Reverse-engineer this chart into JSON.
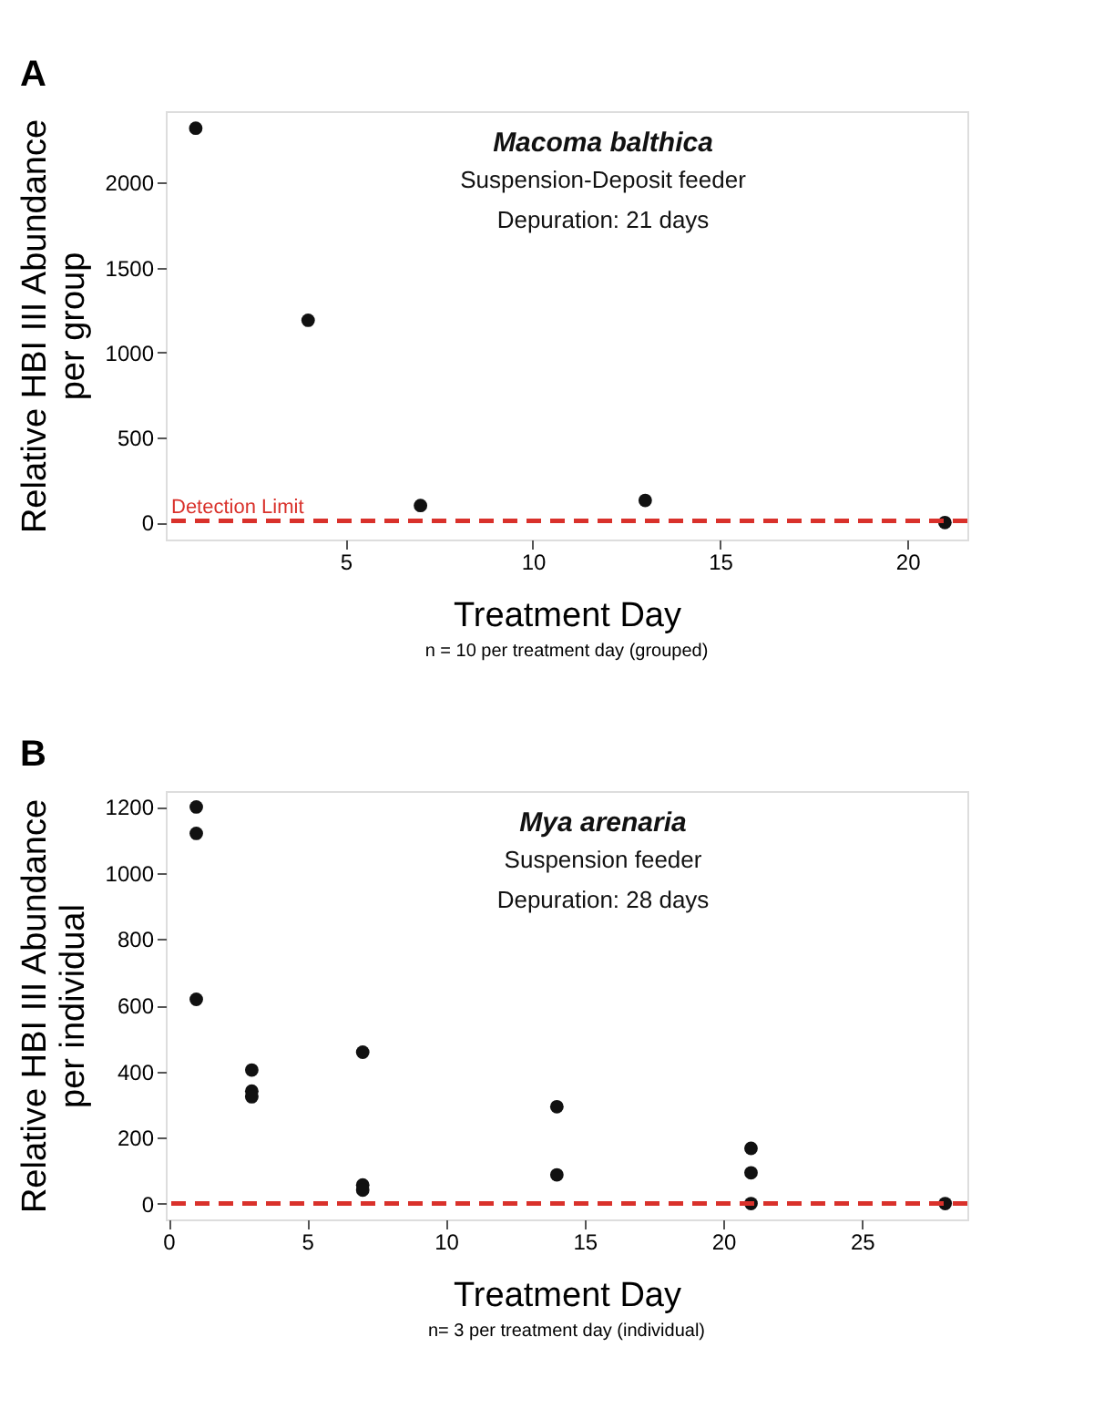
{
  "chart_data": [
    {
      "type": "scatter",
      "title": "Macoma balthica",
      "subtitle": [
        "Suspension-Deposit feeder",
        "Depuration: 21 days"
      ],
      "xlabel": "Treatment Day",
      "ylabel": [
        "Relative HBI III Abundance",
        "per group"
      ],
      "annotations": [
        "A",
        "n = 10 per treatment day (grouped)"
      ],
      "series": [
        {
          "color": "#111111",
          "x": [
            1,
            4,
            7,
            13,
            21
          ],
          "values": [
            2320,
            1190,
            100,
            130,
            0
          ]
        }
      ],
      "ref_lines": [
        {
          "axis": "y",
          "value": 10,
          "label": "Detection Limit",
          "color": "#d9312b",
          "line_style": "dashed"
        }
      ],
      "xlim": [
        0.2,
        21.6
      ],
      "xticks": [
        5,
        10,
        15,
        20
      ],
      "ylim": [
        -100,
        2420
      ],
      "yticks": [
        0,
        500,
        1000,
        1500,
        2000
      ],
      "grid": false,
      "marker": "circle"
    },
    {
      "type": "scatter",
      "title": "Mya arenaria",
      "subtitle": [
        "Suspension feeder",
        "Depuration: 28 days"
      ],
      "xlabel": "Treatment Day",
      "ylabel": [
        "Relative HBI III Abundance",
        "per individual"
      ],
      "annotations": [
        "B",
        "n= 3 per treatment day (individual)"
      ],
      "series": [
        {
          "color": "#111111",
          "x": [
            1,
            1,
            1,
            3,
            3,
            3,
            7,
            7,
            7,
            14,
            14,
            21,
            21,
            21,
            28
          ],
          "values": [
            1200,
            1120,
            618,
            404,
            340,
            323,
            458,
            56,
            41,
            293,
            87,
            167,
            93,
            0,
            0
          ]
        }
      ],
      "ref_lines": [
        {
          "axis": "y",
          "value": 0,
          "color": "#d9312b",
          "line_style": "dashed"
        }
      ],
      "xlim": [
        -0.1,
        28.8
      ],
      "xticks": [
        0,
        5,
        10,
        15,
        20,
        25
      ],
      "ylim": [
        -48,
        1248
      ],
      "yticks": [
        0,
        200,
        400,
        600,
        800,
        1000,
        1200
      ],
      "grid": false,
      "marker": "circle"
    }
  ]
}
